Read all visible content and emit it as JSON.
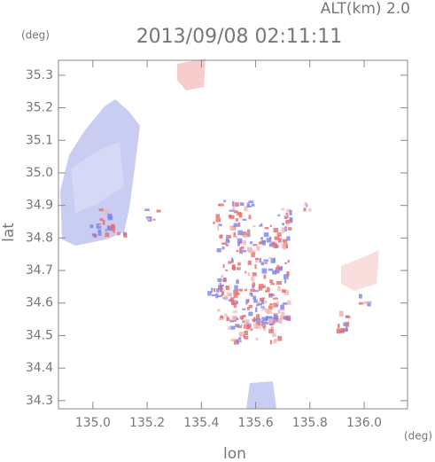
{
  "chart_data": {
    "type": "map",
    "title": "2013/09/08 02:11:11",
    "annotation": "ALT(km) 2.0",
    "x_label": "lon",
    "y_label": "lat",
    "x_unit": "(deg)",
    "y_unit": "(deg)",
    "xlim": [
      134.873,
      136.16
    ],
    "ylim": [
      34.275,
      35.346
    ],
    "xticks": [
      {
        "value": 135,
        "label": "135.0"
      },
      135.2,
      135.4,
      135.6,
      135.8,
      {
        "value": 136,
        "label": "136.0"
      }
    ],
    "yticks": [
      34.3,
      34.4,
      34.5,
      34.6,
      34.7,
      34.8,
      34.9,
      {
        "value": 35,
        "label": "35.0"
      },
      35.1,
      35.2,
      35.3
    ]
  }
}
